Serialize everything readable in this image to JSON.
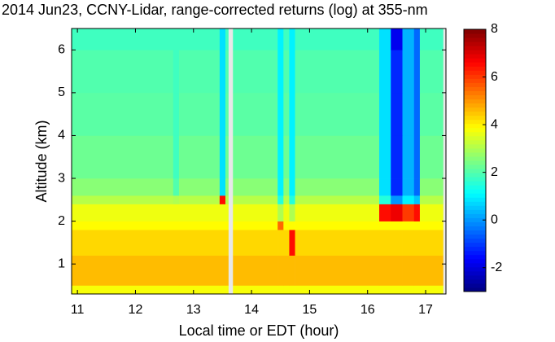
{
  "chart_data": {
    "type": "heatmap",
    "title": "2014 Jun23, CCNY-Lidar, range-corrected returns (log) at 355-nm",
    "x_label": "Local time or EDT (hour)",
    "y_label": "Altitude (km)",
    "colormap": "jet",
    "clim": [
      -3,
      8
    ],
    "colorbar_ticks": [
      -2,
      0,
      2,
      4,
      6,
      8
    ],
    "xlim": [
      10.9,
      17.35
    ],
    "xticks": [
      11,
      12,
      13,
      14,
      15,
      16,
      17
    ],
    "ylim": [
      0.3,
      6.5
    ],
    "yticks": [
      1,
      2,
      3,
      4,
      5,
      6
    ],
    "x_edges": [
      10.9,
      12.65,
      12.75,
      13.45,
      13.55,
      13.6,
      13.68,
      14.45,
      14.55,
      14.65,
      14.75,
      16.2,
      16.4,
      16.6,
      16.8,
      16.9,
      17.3
    ],
    "y_edges": [
      0.3,
      0.5,
      1.2,
      1.8,
      2.0,
      2.4,
      2.6,
      3.0,
      4.0,
      5.0,
      6.0,
      6.5
    ],
    "z": [
      [
        3.8,
        3.8,
        3.8,
        3.8,
        3.8,
        null,
        3.8,
        3.8,
        3.8,
        3.8,
        3.8,
        3.8,
        3.8,
        3.8,
        3.8,
        3.8
      ],
      [
        4.6,
        4.6,
        4.6,
        4.6,
        4.6,
        null,
        4.6,
        4.6,
        4.6,
        4.6,
        4.6,
        4.6,
        4.6,
        4.6,
        4.6,
        4.6
      ],
      [
        4.3,
        4.3,
        4.3,
        4.3,
        4.3,
        null,
        4.3,
        4.3,
        4.3,
        6.5,
        4.3,
        4.3,
        4.3,
        4.3,
        4.3,
        4.3
      ],
      [
        3.9,
        3.9,
        3.9,
        3.9,
        3.9,
        null,
        3.9,
        5.5,
        3.9,
        3.9,
        3.9,
        3.9,
        3.9,
        3.9,
        3.9,
        3.9
      ],
      [
        3.7,
        3.7,
        3.7,
        3.7,
        3.7,
        null,
        3.7,
        3.0,
        3.7,
        3.0,
        3.7,
        6.5,
        6.8,
        6.0,
        6.5,
        3.7
      ],
      [
        3.1,
        3.0,
        3.1,
        6.5,
        3.1,
        null,
        3.1,
        1.5,
        3.1,
        1.5,
        3.1,
        1.5,
        0.0,
        1.0,
        0.5,
        3.1
      ],
      [
        2.6,
        2.0,
        2.6,
        0.8,
        2.6,
        null,
        2.6,
        1.0,
        2.6,
        1.0,
        2.6,
        0.8,
        -1.2,
        0.3,
        -0.5,
        2.6
      ],
      [
        2.3,
        1.8,
        2.3,
        0.8,
        2.3,
        null,
        2.3,
        1.0,
        2.3,
        1.0,
        2.3,
        0.8,
        -1.2,
        0.3,
        -0.5,
        2.3
      ],
      [
        2.1,
        1.8,
        2.1,
        0.8,
        2.1,
        null,
        2.1,
        1.0,
        2.1,
        1.0,
        2.1,
        0.8,
        -1.2,
        0.3,
        -0.5,
        2.1
      ],
      [
        2.0,
        1.8,
        2.0,
        0.8,
        2.0,
        null,
        2.0,
        1.0,
        2.0,
        1.0,
        2.0,
        0.8,
        -1.2,
        0.3,
        -0.5,
        2.0
      ],
      [
        1.8,
        1.8,
        1.8,
        0.8,
        1.8,
        null,
        1.8,
        1.0,
        1.8,
        1.0,
        1.8,
        0.8,
        -1.8,
        0.3,
        -0.5,
        1.8
      ]
    ]
  }
}
